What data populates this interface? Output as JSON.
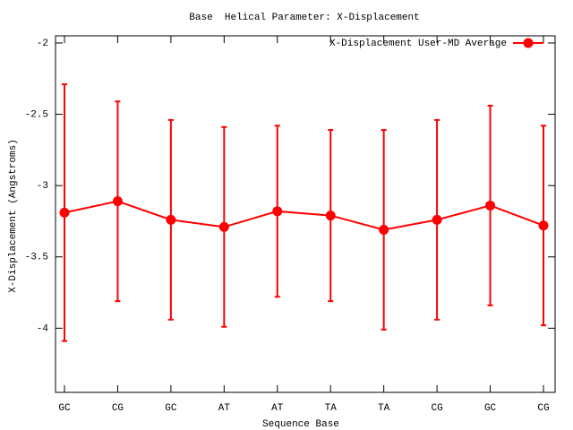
{
  "chart_data": {
    "type": "line",
    "title": "Base  Helical Parameter: X-Displacement",
    "xlabel": "Sequence Base",
    "ylabel": "X-Displacement (Angstroms)",
    "categories": [
      "GC",
      "CG",
      "GC",
      "AT",
      "AT",
      "TA",
      "TA",
      "CG",
      "GC",
      "CG"
    ],
    "series": [
      {
        "name": "X-Displacement User-MD Average",
        "color": "#ff0000",
        "values": [
          -3.19,
          -3.11,
          -3.24,
          -3.29,
          -3.18,
          -3.21,
          -3.31,
          -3.24,
          -3.14,
          -3.28
        ],
        "errors": [
          0.9,
          0.7,
          0.7,
          0.7,
          0.6,
          0.6,
          0.7,
          0.7,
          0.7,
          0.7
        ]
      }
    ],
    "ylim": [
      -4.45,
      -1.95
    ],
    "yticks": [
      -2,
      -2.5,
      -3,
      -3.5,
      -4
    ],
    "grid": false,
    "legend": "top-right"
  }
}
